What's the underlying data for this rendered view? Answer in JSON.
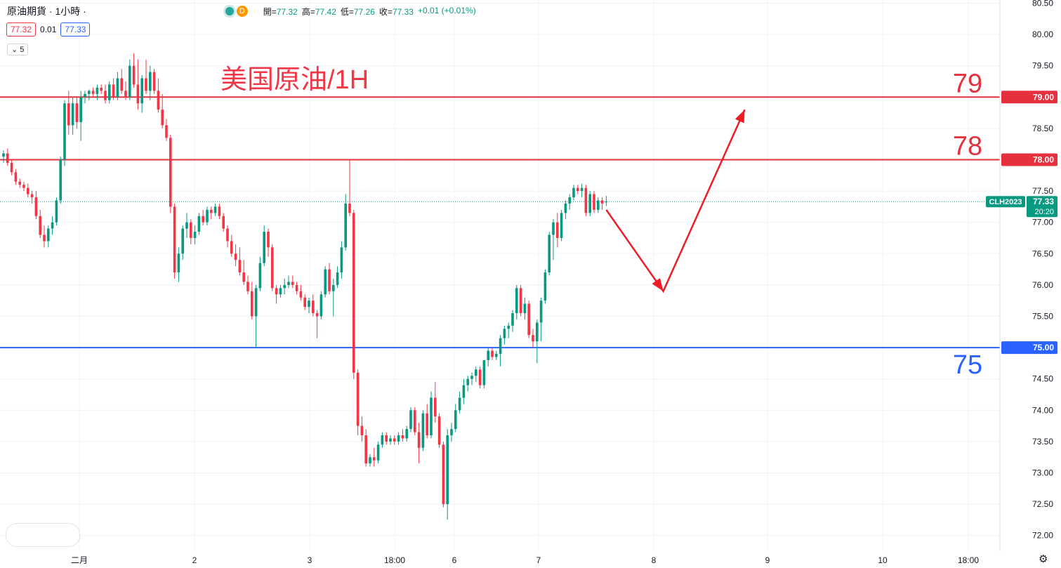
{
  "legend": {
    "symbol": "原油期貨 · 1小時 ·",
    "badge": "D",
    "open_label": "開=",
    "open": "77.32",
    "high_label": "高=",
    "high": "77.42",
    "low_label": "低=",
    "low": "77.26",
    "close_label": "收=",
    "close": "77.33",
    "change": "+0.01 (+0.01%)"
  },
  "quote": {
    "bid": "77.32",
    "spread": "0.01",
    "ask": "77.33"
  },
  "indicators_toggle": "5",
  "colors": {
    "up": "#089981",
    "down": "#f23645",
    "support": "#2962ff",
    "resistance": "#e5303d",
    "grid": "#f0f3fa"
  },
  "chart_data": {
    "type": "candlestick",
    "title": "美国原油/1H",
    "symbol_tag": "CLH2023",
    "last_price": 77.33,
    "countdown": "20:20",
    "ylim": [
      71.75,
      80.55
    ],
    "y_ticks": [
      "72.00",
      "72.50",
      "73.00",
      "73.50",
      "74.00",
      "74.50",
      "75.00",
      "75.50",
      "76.00",
      "76.50",
      "77.00",
      "77.50",
      "78.00",
      "78.50",
      "79.00",
      "79.50",
      "80.00",
      "80.50"
    ],
    "x_ticks": [
      "二月",
      "2",
      "3",
      "18:00",
      "6",
      "7",
      "8",
      "9",
      "10",
      "18:00"
    ],
    "horizontal_levels": [
      {
        "value": 79.0,
        "label": "79",
        "tag": "79.00",
        "color": "#e5303d"
      },
      {
        "value": 78.0,
        "label": "78",
        "tag": "78.00",
        "color": "#e5303d"
      },
      {
        "value": 75.0,
        "label": "75",
        "tag": "75.00",
        "color": "#2962ff"
      }
    ],
    "forecast_path": [
      {
        "bar": 0,
        "price": 77.2
      },
      {
        "bar": 14,
        "price": 75.9
      },
      {
        "bar": 34,
        "price": 78.8
      }
    ],
    "candles": [
      [
        78.05,
        78.15,
        77.95,
        78.1
      ],
      [
        78.1,
        78.18,
        77.9,
        77.95
      ],
      [
        77.95,
        78.0,
        77.75,
        77.8
      ],
      [
        77.8,
        77.85,
        77.6,
        77.65
      ],
      [
        77.65,
        77.7,
        77.55,
        77.6
      ],
      [
        77.6,
        77.65,
        77.5,
        77.55
      ],
      [
        77.55,
        77.62,
        77.4,
        77.45
      ],
      [
        77.45,
        77.5,
        77.3,
        77.4
      ],
      [
        77.4,
        77.5,
        77.05,
        77.1
      ],
      [
        77.1,
        77.2,
        76.75,
        76.8
      ],
      [
        76.8,
        76.95,
        76.6,
        76.7
      ],
      [
        76.7,
        76.95,
        76.6,
        76.9
      ],
      [
        76.9,
        77.1,
        76.8,
        77.0
      ],
      [
        77.0,
        77.4,
        76.95,
        77.35
      ],
      [
        77.35,
        78.05,
        77.3,
        78.0
      ],
      [
        78.0,
        78.95,
        77.9,
        78.9
      ],
      [
        78.9,
        79.1,
        78.4,
        78.55
      ],
      [
        78.55,
        79.0,
        78.4,
        78.9
      ],
      [
        78.9,
        79.0,
        78.5,
        78.6
      ],
      [
        78.6,
        79.1,
        78.3,
        79.0
      ],
      [
        79.0,
        79.1,
        78.9,
        79.05
      ],
      [
        79.05,
        79.12,
        78.95,
        79.1
      ],
      [
        79.1,
        79.15,
        79.0,
        79.05
      ],
      [
        79.05,
        79.2,
        78.95,
        79.15
      ],
      [
        79.15,
        79.2,
        79.05,
        79.1
      ],
      [
        79.1,
        79.2,
        78.9,
        78.95
      ],
      [
        78.95,
        79.25,
        78.9,
        79.2
      ],
      [
        79.2,
        79.3,
        78.95,
        79.0
      ],
      [
        79.0,
        79.4,
        78.95,
        79.3
      ],
      [
        79.3,
        79.45,
        79.05,
        79.1
      ],
      [
        79.1,
        79.25,
        78.95,
        79.0
      ],
      [
        79.0,
        79.6,
        78.95,
        79.5
      ],
      [
        79.5,
        79.7,
        79.15,
        79.2
      ],
      [
        79.2,
        79.6,
        78.8,
        78.9
      ],
      [
        78.9,
        79.35,
        78.75,
        79.3
      ],
      [
        79.3,
        79.6,
        79.05,
        79.1
      ],
      [
        79.1,
        79.5,
        78.95,
        79.4
      ],
      [
        79.4,
        79.45,
        79.05,
        79.1
      ],
      [
        79.1,
        79.3,
        78.75,
        78.8
      ],
      [
        78.8,
        79.05,
        78.5,
        78.55
      ],
      [
        78.55,
        78.65,
        78.3,
        78.35
      ],
      [
        78.35,
        78.4,
        77.15,
        77.25
      ],
      [
        77.25,
        77.3,
        76.1,
        76.2
      ],
      [
        76.2,
        76.6,
        76.05,
        76.5
      ],
      [
        76.5,
        76.95,
        76.4,
        76.9
      ],
      [
        76.9,
        77.15,
        76.75,
        77.0
      ],
      [
        77.0,
        77.05,
        76.65,
        76.75
      ],
      [
        76.75,
        76.95,
        76.65,
        76.85
      ],
      [
        76.85,
        77.15,
        76.8,
        77.1
      ],
      [
        77.1,
        77.2,
        76.95,
        77.0
      ],
      [
        77.0,
        77.25,
        76.95,
        77.2
      ],
      [
        77.2,
        77.25,
        77.05,
        77.15
      ],
      [
        77.15,
        77.3,
        77.1,
        77.25
      ],
      [
        77.25,
        77.3,
        77.05,
        77.1
      ],
      [
        77.1,
        77.15,
        76.85,
        76.9
      ],
      [
        76.9,
        76.95,
        76.6,
        76.7
      ],
      [
        76.7,
        76.8,
        76.45,
        76.5
      ],
      [
        76.5,
        76.65,
        76.3,
        76.4
      ],
      [
        76.4,
        76.6,
        76.15,
        76.2
      ],
      [
        76.2,
        76.4,
        76.0,
        76.05
      ],
      [
        76.05,
        76.15,
        75.85,
        75.9
      ],
      [
        75.9,
        76.05,
        75.45,
        75.5
      ],
      [
        75.5,
        76.0,
        75.0,
        75.95
      ],
      [
        75.95,
        76.45,
        75.9,
        76.35
      ],
      [
        76.35,
        76.95,
        76.3,
        76.85
      ],
      [
        76.85,
        76.9,
        76.45,
        76.6
      ],
      [
        76.6,
        76.65,
        75.9,
        75.95
      ],
      [
        75.95,
        76.0,
        75.7,
        75.85
      ],
      [
        75.85,
        76.0,
        75.8,
        75.95
      ],
      [
        75.95,
        76.1,
        75.85,
        76.0
      ],
      [
        76.0,
        76.15,
        75.95,
        76.05
      ],
      [
        76.05,
        76.15,
        75.95,
        76.0
      ],
      [
        76.0,
        76.05,
        75.85,
        75.9
      ],
      [
        75.9,
        76.0,
        75.75,
        75.8
      ],
      [
        75.8,
        75.85,
        75.6,
        75.65
      ],
      [
        75.65,
        75.8,
        75.55,
        75.75
      ],
      [
        75.75,
        75.85,
        75.5,
        75.55
      ],
      [
        75.55,
        75.6,
        75.15,
        75.5
      ],
      [
        75.5,
        75.9,
        75.45,
        75.85
      ],
      [
        75.85,
        76.3,
        75.8,
        76.25
      ],
      [
        76.25,
        76.35,
        75.85,
        75.9
      ],
      [
        75.9,
        76.1,
        75.5,
        76.0
      ],
      [
        76.0,
        76.3,
        75.95,
        76.2
      ],
      [
        76.2,
        76.7,
        76.1,
        76.6
      ],
      [
        76.6,
        77.45,
        76.55,
        77.3
      ],
      [
        77.3,
        78.0,
        77.1,
        77.15
      ],
      [
        77.15,
        77.2,
        74.5,
        74.6
      ],
      [
        74.6,
        74.65,
        73.6,
        73.75
      ],
      [
        73.75,
        73.9,
        73.5,
        73.6
      ],
      [
        73.6,
        73.7,
        73.1,
        73.15
      ],
      [
        73.15,
        73.3,
        73.1,
        73.25
      ],
      [
        73.25,
        73.4,
        73.1,
        73.2
      ],
      [
        73.2,
        73.5,
        73.15,
        73.45
      ],
      [
        73.45,
        73.65,
        73.4,
        73.6
      ],
      [
        73.6,
        73.65,
        73.45,
        73.5
      ],
      [
        73.5,
        73.6,
        73.45,
        73.55
      ],
      [
        73.55,
        73.6,
        73.45,
        73.5
      ],
      [
        73.5,
        73.65,
        73.45,
        73.6
      ],
      [
        73.6,
        73.7,
        73.5,
        73.55
      ],
      [
        73.55,
        73.75,
        73.5,
        73.7
      ],
      [
        73.7,
        74.05,
        73.65,
        74.0
      ],
      [
        74.0,
        74.05,
        73.6,
        73.65
      ],
      [
        73.65,
        73.8,
        73.15,
        73.4
      ],
      [
        73.4,
        74.0,
        73.35,
        73.95
      ],
      [
        73.95,
        74.1,
        73.55,
        73.6
      ],
      [
        73.6,
        74.3,
        73.55,
        74.2
      ],
      [
        74.2,
        74.45,
        73.8,
        73.9
      ],
      [
        73.9,
        73.95,
        73.4,
        73.45
      ],
      [
        73.45,
        73.5,
        72.45,
        72.5
      ],
      [
        72.5,
        73.7,
        72.25,
        73.6
      ],
      [
        73.6,
        73.8,
        73.5,
        73.7
      ],
      [
        73.7,
        74.1,
        73.65,
        74.0
      ],
      [
        74.0,
        74.3,
        73.95,
        74.2
      ],
      [
        74.2,
        74.5,
        74.1,
        74.4
      ],
      [
        74.4,
        74.55,
        74.3,
        74.5
      ],
      [
        74.5,
        74.6,
        74.4,
        74.55
      ],
      [
        74.55,
        74.7,
        74.45,
        74.65
      ],
      [
        74.65,
        74.7,
        74.35,
        74.4
      ],
      [
        74.4,
        74.8,
        74.35,
        74.8
      ],
      [
        74.8,
        75.0,
        74.7,
        74.95
      ],
      [
        74.95,
        75.0,
        74.8,
        74.85
      ],
      [
        74.85,
        74.95,
        74.8,
        74.9
      ],
      [
        74.9,
        75.2,
        74.7,
        75.15
      ],
      [
        75.15,
        75.35,
        75.05,
        75.3
      ],
      [
        75.3,
        75.4,
        75.15,
        75.35
      ],
      [
        75.35,
        75.6,
        75.25,
        75.55
      ],
      [
        75.55,
        76.0,
        75.45,
        75.95
      ],
      [
        75.95,
        76.0,
        75.5,
        75.55
      ],
      [
        75.55,
        75.8,
        75.45,
        75.7
      ],
      [
        75.7,
        75.75,
        75.15,
        75.2
      ],
      [
        75.2,
        75.3,
        75.0,
        75.1
      ],
      [
        75.1,
        75.45,
        74.75,
        75.4
      ],
      [
        75.4,
        75.8,
        75.1,
        75.75
      ],
      [
        75.75,
        76.25,
        75.7,
        76.2
      ],
      [
        76.2,
        76.85,
        76.15,
        76.8
      ],
      [
        76.8,
        77.05,
        76.4,
        77.0
      ],
      [
        77.0,
        77.15,
        76.6,
        76.75
      ],
      [
        76.75,
        77.2,
        76.7,
        77.15
      ],
      [
        77.15,
        77.35,
        77.05,
        77.3
      ],
      [
        77.3,
        77.45,
        77.2,
        77.4
      ],
      [
        77.4,
        77.6,
        77.35,
        77.55
      ],
      [
        77.55,
        77.6,
        77.45,
        77.5
      ],
      [
        77.5,
        77.62,
        77.4,
        77.55
      ],
      [
        77.55,
        77.6,
        77.1,
        77.15
      ],
      [
        77.15,
        77.5,
        77.1,
        77.45
      ],
      [
        77.45,
        77.5,
        77.15,
        77.2
      ],
      [
        77.2,
        77.4,
        77.15,
        77.35
      ],
      [
        77.35,
        77.4,
        77.2,
        77.3
      ],
      [
        77.32,
        77.42,
        77.26,
        77.33
      ]
    ]
  }
}
